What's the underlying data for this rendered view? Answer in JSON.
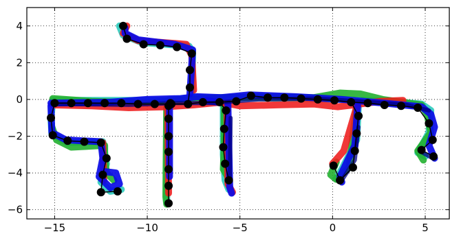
{
  "chart_data": {
    "type": "line",
    "title": "",
    "xlabel": "",
    "ylabel": "",
    "xlim": [
      -16.5,
      6.3
    ],
    "ylim": [
      -6.5,
      5.0
    ],
    "grid": true,
    "legend": "none",
    "x_ticks": [
      -15,
      -10,
      -5,
      0,
      5
    ],
    "y_ticks": [
      4,
      2,
      0,
      -2,
      -4,
      -6
    ],
    "x_tick_labels": [
      "−15",
      "−10",
      "−5",
      "0",
      "5"
    ],
    "y_tick_labels": [
      "4",
      "2",
      "0",
      "−2",
      "−4",
      "−6"
    ],
    "series": [
      {
        "color": "#20c8b8",
        "width": 10,
        "opacity": 0.85,
        "paths": [
          [
            [
              -15.1,
              -0.05
            ],
            [
              -12,
              -0.05
            ],
            [
              -9,
              -0.05
            ],
            [
              -7.6,
              0.1
            ],
            [
              -5,
              0.1
            ],
            [
              -2,
              0.05
            ],
            [
              0.5,
              0
            ],
            [
              3,
              -0.1
            ],
            [
              4.8,
              -0.25
            ],
            [
              5.3,
              -0.6
            ],
            [
              5.2,
              -1.8
            ],
            [
              4.6,
              -2.9
            ],
            [
              5,
              -3.1
            ]
          ],
          [
            [
              -15.1,
              -0.1
            ],
            [
              -15.2,
              -1.0
            ],
            [
              -15.15,
              -1.9
            ],
            [
              -14.3,
              -2.35
            ],
            [
              -12.4,
              -2.3
            ],
            [
              -12.2,
              -3.5
            ],
            [
              -12.5,
              -4.5
            ],
            [
              -12.0,
              -5.0
            ],
            [
              -11.4,
              -4.9
            ]
          ],
          [
            [
              -7.6,
              0.2
            ],
            [
              -7.55,
              2.6
            ],
            [
              -7.75,
              2.9
            ],
            [
              -10.3,
              3.1
            ],
            [
              -11.3,
              3.5
            ],
            [
              -11.5,
              4.0
            ]
          ],
          [
            [
              -8.9,
              -0.05
            ],
            [
              -8.95,
              -5.6
            ]
          ],
          [
            [
              -5.9,
              0
            ],
            [
              -5.9,
              -3.0
            ],
            [
              -5.8,
              -4.4
            ],
            [
              -5.6,
              -4.9
            ]
          ],
          [
            [
              1.4,
              -0.2
            ],
            [
              1.3,
              -2.2
            ],
            [
              0.5,
              -3.8
            ],
            [
              0.2,
              -4.3
            ]
          ]
        ]
      },
      {
        "color": "#22b030",
        "width": 10,
        "opacity": 0.9,
        "paths": [
          [
            [
              -15.1,
              0.05
            ],
            [
              -13,
              -0.1
            ],
            [
              -10,
              -0.2
            ],
            [
              -7.7,
              0
            ],
            [
              -6,
              0.1
            ],
            [
              -4,
              0.15
            ],
            [
              -1,
              0.1
            ],
            [
              0.4,
              0.35
            ],
            [
              1.5,
              0.3
            ],
            [
              2.7,
              0.0
            ],
            [
              4.8,
              -0.3
            ],
            [
              5.1,
              -0.8
            ],
            [
              5.3,
              -1.8
            ],
            [
              4.6,
              -2.8
            ],
            [
              4.9,
              -3.3
            ]
          ],
          [
            [
              -15.15,
              -1.5
            ],
            [
              -14.9,
              -2.2
            ],
            [
              -14.1,
              -2.6
            ],
            [
              -12.3,
              -2.5
            ],
            [
              -12.3,
              -3.2
            ],
            [
              -12.2,
              -4.0
            ],
            [
              -11.8,
              -4.4
            ]
          ],
          [
            [
              -8.95,
              -0.2
            ],
            [
              -9.0,
              -5.3
            ],
            [
              -8.95,
              -5.7
            ]
          ],
          [
            [
              -5.85,
              -0.3
            ],
            [
              -5.85,
              -2.5
            ],
            [
              -5.9,
              -3.8
            ],
            [
              -5.6,
              -4.3
            ]
          ],
          [
            [
              1.3,
              -0.3
            ],
            [
              1.1,
              -1.9
            ],
            [
              0.9,
              -3.7
            ],
            [
              0.2,
              -4.35
            ],
            [
              -0.1,
              -4.1
            ],
            [
              0.2,
              -3.4
            ]
          ]
        ]
      },
      {
        "color": "#ee1c1c",
        "width": 10,
        "opacity": 0.88,
        "paths": [
          [
            [
              -15.1,
              -0.3
            ],
            [
              -13,
              -0.35
            ],
            [
              -11,
              -0.45
            ],
            [
              -9,
              -0.4
            ],
            [
              -7.5,
              -0.3
            ],
            [
              -6,
              -0.15
            ],
            [
              -5,
              -0.35
            ],
            [
              -3,
              -0.3
            ],
            [
              -1,
              -0.25
            ],
            [
              0.3,
              -0.4
            ],
            [
              1.5,
              -0.25
            ],
            [
              2.6,
              -0.1
            ],
            [
              3.8,
              -0.05
            ]
          ],
          [
            [
              -7.5,
              0.5
            ],
            [
              -7.6,
              2.4
            ],
            [
              -7.9,
              3.0
            ],
            [
              -10.5,
              3.2
            ],
            [
              -11.3,
              3.6
            ],
            [
              -11.1,
              4.0
            ]
          ],
          [
            [
              -8.9,
              -0.25
            ],
            [
              -8.85,
              -5.1
            ]
          ],
          [
            [
              -5.7,
              -0.3
            ],
            [
              -5.65,
              -4.6
            ],
            [
              -5.4,
              -5.05
            ]
          ],
          [
            [
              -12.4,
              -2.35
            ],
            [
              -12.35,
              -4.4
            ]
          ],
          [
            [
              1.3,
              -0.4
            ],
            [
              0.6,
              -2.8
            ],
            [
              0.0,
              -3.5
            ]
          ]
        ]
      },
      {
        "color": "#0a0ae6",
        "width": 10,
        "opacity": 0.92,
        "paths": [
          [
            [
              -15.2,
              -0.2
            ],
            [
              -12,
              -0.15
            ],
            [
              -10,
              0.0
            ],
            [
              -8.2,
              0.05
            ],
            [
              -7.3,
              0.15
            ],
            [
              -6,
              0.1
            ],
            [
              -4.5,
              0.25
            ],
            [
              -2,
              0.15
            ],
            [
              0.5,
              0.0
            ],
            [
              2.8,
              -0.2
            ],
            [
              4.8,
              -0.4
            ],
            [
              5.3,
              -0.8
            ],
            [
              5.5,
              -1.5
            ],
            [
              5.2,
              -2.5
            ],
            [
              5.5,
              -3.2
            ]
          ],
          [
            [
              -15.2,
              -0.35
            ],
            [
              -15.15,
              -1.8
            ],
            [
              -14.4,
              -2.2
            ],
            [
              -13.5,
              -2.25
            ],
            [
              -12.5,
              -2.3
            ],
            [
              -12.4,
              -3.2
            ],
            [
              -12.6,
              -4.2
            ],
            [
              -12.0,
              -4.8
            ],
            [
              -11.5,
              -4.6
            ],
            [
              -11.7,
              -4.0
            ],
            [
              -12.5,
              -3.9
            ]
          ],
          [
            [
              -7.7,
              0.3
            ],
            [
              -7.55,
              2.7
            ],
            [
              -8.5,
              3.0
            ],
            [
              -10.5,
              3.25
            ],
            [
              -11.2,
              3.6
            ],
            [
              -11.2,
              3.9
            ]
          ],
          [
            [
              -5.65,
              -0.2
            ],
            [
              -5.6,
              -2.5
            ],
            [
              -5.55,
              -4.8
            ],
            [
              -5.45,
              -5.1
            ]
          ],
          [
            [
              1.35,
              -0.35
            ],
            [
              1.2,
              -2.5
            ],
            [
              0.4,
              -4.2
            ],
            [
              0.5,
              -4.5
            ]
          ],
          [
            [
              -8.8,
              -0.15
            ],
            [
              -8.8,
              -4.2
            ]
          ],
          [
            [
              -6.8,
              -0.05
            ],
            [
              -6.25,
              -0.15
            ]
          ]
        ]
      },
      {
        "color": "#000080",
        "width": 6,
        "opacity": 0.75,
        "paths": [
          [
            [
              -15.0,
              -0.25
            ],
            [
              -11,
              -0.3
            ],
            [
              -8.5,
              -0.2
            ],
            [
              -6.5,
              -0.2
            ],
            [
              -4,
              0.0
            ],
            [
              -1,
              0.05
            ],
            [
              1.5,
              -0.1
            ],
            [
              4.0,
              -0.3
            ],
            [
              5.2,
              -0.6
            ]
          ],
          [
            [
              -5.5,
              -1.0
            ],
            [
              -5.55,
              -4.5
            ]
          ],
          [
            [
              0.5,
              -4.4
            ],
            [
              1.2,
              -3.3
            ],
            [
              1.4,
              -1.5
            ]
          ],
          [
            [
              4.7,
              -2.8
            ],
            [
              5.4,
              -3.2
            ]
          ]
        ]
      },
      {
        "color": "#000000",
        "width": 1.5,
        "opacity": 1,
        "markers": true,
        "paths": [
          [
            [
              -15.0,
              -0.2
            ],
            [
              -14.1,
              -0.2
            ],
            [
              -13.2,
              -0.2
            ],
            [
              -12.3,
              -0.2
            ],
            [
              -11.4,
              -0.2
            ],
            [
              -10.5,
              -0.25
            ],
            [
              -9.6,
              -0.25
            ],
            [
              -8.7,
              -0.25
            ],
            [
              -7.8,
              -0.25
            ],
            [
              -7.0,
              -0.15
            ],
            [
              -6.1,
              -0.15
            ],
            [
              -5.2,
              -0.1
            ],
            [
              -4.4,
              0.2
            ],
            [
              -3.5,
              0.1
            ],
            [
              -2.6,
              0.1
            ],
            [
              -1.7,
              0.05
            ],
            [
              -0.8,
              0.0
            ],
            [
              0.1,
              -0.05
            ],
            [
              1.0,
              -0.15
            ],
            [
              1.9,
              -0.2
            ],
            [
              2.8,
              -0.3
            ],
            [
              3.7,
              -0.35
            ],
            [
              4.6,
              -0.45
            ]
          ],
          [
            [
              -15.2,
              -1.0
            ],
            [
              -15.1,
              -1.95
            ],
            [
              -14.3,
              -2.25
            ],
            [
              -13.4,
              -2.3
            ],
            [
              -12.5,
              -2.35
            ],
            [
              -12.2,
              -3.2
            ],
            [
              -12.4,
              -4.1
            ],
            [
              -12.5,
              -5.05
            ],
            [
              -11.6,
              -5.0
            ]
          ],
          [
            [
              -7.7,
              0.65
            ],
            [
              -7.7,
              1.6
            ],
            [
              -7.6,
              2.5
            ],
            [
              -8.4,
              2.85
            ],
            [
              -9.3,
              2.95
            ],
            [
              -10.2,
              3.0
            ],
            [
              -11.1,
              3.3
            ],
            [
              -11.3,
              4.0
            ]
          ],
          [
            [
              -8.85,
              -0.35
            ],
            [
              -8.85,
              -1.05
            ],
            [
              -8.85,
              -2.0
            ],
            [
              -8.85,
              -2.85
            ],
            [
              -8.85,
              -3.8
            ],
            [
              -8.85,
              -4.7
            ],
            [
              -8.85,
              -5.65
            ]
          ],
          [
            [
              -5.75,
              -0.6
            ],
            [
              -5.85,
              -1.6
            ],
            [
              -5.9,
              -2.6
            ],
            [
              -5.8,
              -3.5
            ],
            [
              -5.6,
              -4.4
            ]
          ],
          [
            [
              1.4,
              -0.9
            ],
            [
              1.3,
              -1.85
            ],
            [
              1.2,
              -2.8
            ],
            [
              1.1,
              -3.7
            ],
            [
              0.4,
              -4.4
            ],
            [
              0.05,
              -3.6
            ]
          ],
          [
            [
              5.2,
              -1.3
            ],
            [
              5.4,
              -2.2
            ],
            [
              4.8,
              -2.75
            ],
            [
              5.45,
              -3.1
            ]
          ],
          [
            [
              -8.75,
              -0.2
            ],
            [
              -8.85,
              -0.35
            ]
          ],
          [
            [
              -7.8,
              -0.25
            ],
            [
              -7.7,
              0.65
            ]
          ],
          [
            [
              -6.1,
              -0.15
            ],
            [
              -5.75,
              -0.6
            ]
          ],
          [
            [
              1.0,
              -0.15
            ],
            [
              1.4,
              -0.9
            ]
          ],
          [
            [
              4.6,
              -0.45
            ],
            [
              5.2,
              -1.3
            ]
          ],
          [
            [
              -15.0,
              -0.2
            ],
            [
              -15.2,
              -1.0
            ]
          ]
        ]
      }
    ]
  }
}
